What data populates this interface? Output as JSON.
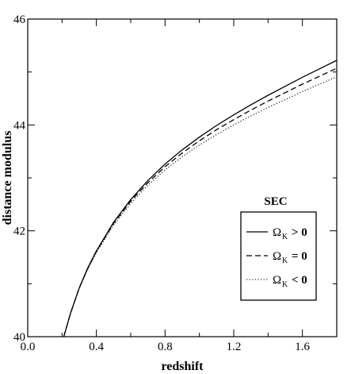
{
  "chart_data": {
    "type": "line",
    "xlabel": "redshift",
    "ylabel": "distance modulus",
    "xlim": [
      0.0,
      1.8
    ],
    "ylim": [
      40,
      46
    ],
    "x_ticks": [
      "0.0",
      "0.4",
      "0.8",
      "1.2",
      "1.6"
    ],
    "y_ticks": [
      "40",
      "42",
      "44",
      "46"
    ],
    "grid": false,
    "legend": {
      "title": "SEC",
      "placement": "lower-right",
      "entries": [
        {
          "symbol": "Ω",
          "sub": "K",
          "op": "> 0",
          "style": "solid"
        },
        {
          "symbol": "Ω",
          "sub": "K",
          "op": "= 0",
          "style": "dashed"
        },
        {
          "symbol": "Ω",
          "sub": "K",
          "op": "< 0",
          "style": "dotted"
        }
      ]
    },
    "series": [
      {
        "style": "solid",
        "x": [
          0.21,
          0.25,
          0.3,
          0.35,
          0.4,
          0.5,
          0.6,
          0.7,
          0.8,
          0.9,
          1.0,
          1.1,
          1.2,
          1.3,
          1.4,
          1.5,
          1.6,
          1.7,
          1.8
        ],
        "y": [
          40.0,
          40.45,
          40.92,
          41.3,
          41.62,
          42.16,
          42.59,
          42.95,
          43.26,
          43.53,
          43.77,
          43.99,
          44.19,
          44.38,
          44.56,
          44.73,
          44.9,
          45.06,
          45.22
        ]
      },
      {
        "style": "dashed",
        "x": [
          0.21,
          0.25,
          0.3,
          0.35,
          0.4,
          0.5,
          0.6,
          0.7,
          0.8,
          0.9,
          1.0,
          1.1,
          1.2,
          1.3,
          1.4,
          1.5,
          1.6,
          1.7,
          1.8
        ],
        "y": [
          40.0,
          40.45,
          40.92,
          41.29,
          41.61,
          42.14,
          42.56,
          42.91,
          43.21,
          43.47,
          43.7,
          43.91,
          44.1,
          44.28,
          44.45,
          44.61,
          44.77,
          44.92,
          45.07
        ]
      },
      {
        "style": "dotted",
        "x": [
          0.21,
          0.25,
          0.3,
          0.35,
          0.4,
          0.5,
          0.6,
          0.7,
          0.8,
          0.9,
          1.0,
          1.1,
          1.2,
          1.3,
          1.4,
          1.5,
          1.6,
          1.7,
          1.8
        ],
        "y": [
          40.0,
          40.44,
          40.91,
          41.28,
          41.59,
          42.11,
          42.52,
          42.86,
          43.15,
          43.4,
          43.62,
          43.82,
          44.0,
          44.17,
          44.33,
          44.48,
          44.63,
          44.77,
          44.91
        ]
      }
    ],
    "colors": {
      "line": "#000000",
      "background": "#ffffff"
    }
  }
}
